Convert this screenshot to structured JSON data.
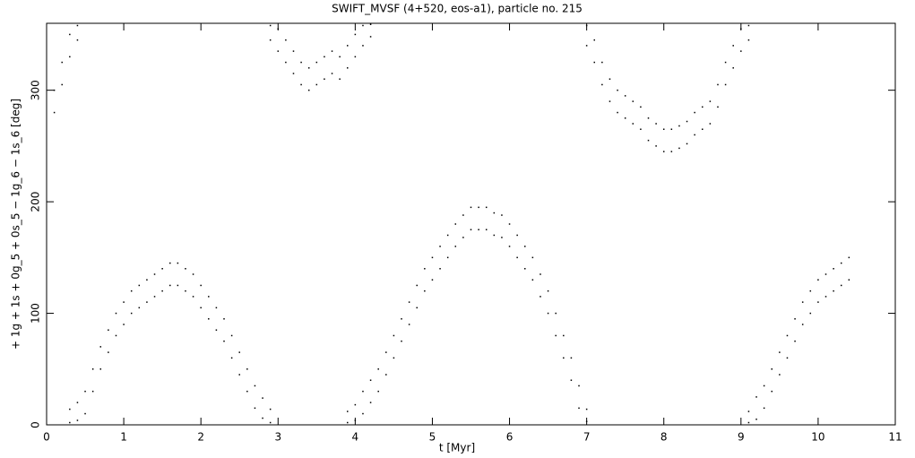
{
  "chart_data": {
    "type": "scatter",
    "title": "SWIFT_MVSF (4+520, eos-a1), particle no. 215",
    "x_label": "t [Myr]",
    "y_label": "+ 1g + 1s + 0g_5 + 0s_5 − 1g_6 − 1s_6 [deg]",
    "color": "#000000",
    "xlim": [
      0,
      11
    ],
    "ylim": [
      0,
      360
    ],
    "xticks": [
      0,
      1,
      2,
      3,
      4,
      5,
      6,
      7,
      8,
      9,
      10,
      11
    ],
    "yticks": [
      0,
      100,
      200,
      300
    ],
    "x": [
      0.3,
      0.3,
      0.4,
      0.4,
      0.5,
      0.5,
      0.6,
      0.6,
      0.7,
      0.7,
      0.8,
      0.8,
      0.9,
      0.9,
      1.0,
      1.0,
      1.1,
      1.1,
      1.2,
      1.2,
      1.3,
      1.3,
      1.4,
      1.4,
      1.5,
      1.5,
      1.6,
      1.6,
      1.7,
      1.7,
      1.8,
      1.8,
      1.9,
      1.9,
      2.0,
      2.0,
      2.1,
      2.1,
      2.2,
      2.2,
      2.3,
      2.3,
      2.4,
      2.4,
      2.5,
      2.5,
      2.6,
      2.6,
      2.7,
      2.7,
      2.8,
      2.8,
      2.9,
      2.9,
      0.1,
      0.1,
      0.2,
      0.2,
      0.3,
      0.3,
      0.4,
      0.4,
      2.9,
      2.9,
      3.0,
      3.0,
      3.1,
      3.1,
      3.2,
      3.2,
      3.3,
      3.3,
      3.4,
      3.4,
      3.5,
      3.5,
      3.6,
      3.6,
      3.7,
      3.7,
      3.8,
      3.8,
      3.9,
      3.9,
      4.0,
      4.0,
      4.1,
      4.1,
      4.2,
      4.2,
      3.9,
      3.9,
      4.0,
      4.0,
      4.1,
      4.1,
      4.2,
      4.2,
      4.3,
      4.3,
      4.4,
      4.4,
      4.5,
      4.5,
      4.6,
      4.6,
      4.7,
      4.7,
      4.8,
      4.8,
      4.9,
      4.9,
      5.0,
      5.0,
      5.1,
      5.1,
      5.2,
      5.2,
      5.3,
      5.3,
      5.4,
      5.4,
      5.5,
      5.5,
      5.6,
      5.6,
      5.7,
      5.7,
      5.8,
      5.8,
      5.9,
      5.9,
      6.0,
      6.0,
      6.1,
      6.1,
      6.2,
      6.2,
      6.3,
      6.3,
      6.4,
      6.4,
      6.5,
      6.5,
      6.6,
      6.6,
      6.7,
      6.7,
      6.8,
      6.8,
      6.9,
      6.9,
      7.0,
      7.0,
      7.0,
      7.0,
      7.1,
      7.1,
      7.2,
      7.2,
      7.3,
      7.3,
      7.4,
      7.4,
      7.5,
      7.5,
      7.6,
      7.6,
      7.7,
      7.7,
      7.8,
      7.8,
      7.9,
      7.9,
      8.0,
      8.0,
      8.1,
      8.1,
      8.2,
      8.2,
      8.3,
      8.3,
      8.4,
      8.4,
      8.5,
      8.5,
      8.6,
      8.6,
      8.7,
      8.7,
      8.8,
      8.8,
      8.9,
      8.9,
      9.0,
      9.0,
      9.1,
      9.1,
      9.1,
      9.1,
      9.2,
      9.2,
      9.3,
      9.3,
      9.4,
      9.4,
      9.5,
      9.5,
      9.6,
      9.6,
      9.7,
      9.7,
      9.8,
      9.8,
      9.9,
      9.9,
      10.0,
      10.0,
      10.1,
      10.1,
      10.2,
      10.2,
      10.3,
      10.3,
      10.4,
      10.4
    ],
    "values": [
      2,
      14,
      4,
      20,
      10,
      30,
      30,
      50,
      50,
      70,
      65,
      85,
      80,
      100,
      90,
      110,
      100,
      120,
      105,
      125,
      110,
      130,
      115,
      135,
      120,
      140,
      125,
      145,
      125,
      145,
      120,
      140,
      115,
      135,
      105,
      125,
      95,
      115,
      85,
      105,
      75,
      95,
      60,
      80,
      45,
      65,
      30,
      50,
      15,
      35,
      6,
      24,
      2,
      14,
      280,
      300,
      305,
      325,
      330,
      350,
      345,
      358,
      345,
      358,
      335,
      355,
      325,
      345,
      315,
      335,
      305,
      325,
      300,
      320,
      305,
      325,
      310,
      330,
      315,
      335,
      310,
      330,
      320,
      340,
      330,
      350,
      340,
      358,
      348,
      359,
      2,
      12,
      4,
      18,
      10,
      30,
      20,
      40,
      30,
      50,
      45,
      65,
      60,
      80,
      75,
      95,
      90,
      110,
      105,
      125,
      120,
      140,
      130,
      150,
      140,
      160,
      150,
      170,
      160,
      180,
      168,
      188,
      175,
      195,
      175,
      195,
      175,
      195,
      170,
      190,
      168,
      188,
      160,
      180,
      150,
      170,
      140,
      160,
      130,
      150,
      115,
      135,
      100,
      120,
      80,
      100,
      60,
      80,
      40,
      60,
      15,
      35,
      3,
      14,
      340,
      358,
      325,
      345,
      305,
      325,
      290,
      310,
      280,
      300,
      275,
      295,
      270,
      290,
      265,
      285,
      255,
      275,
      250,
      270,
      245,
      265,
      245,
      265,
      248,
      268,
      252,
      272,
      260,
      280,
      265,
      285,
      270,
      290,
      285,
      305,
      305,
      325,
      320,
      340,
      335,
      355,
      345,
      358,
      2,
      12,
      5,
      25,
      15,
      35,
      30,
      50,
      45,
      65,
      60,
      80,
      75,
      95,
      90,
      110,
      100,
      120,
      110,
      130,
      115,
      135,
      120,
      140,
      125,
      145,
      130,
      150
    ]
  }
}
